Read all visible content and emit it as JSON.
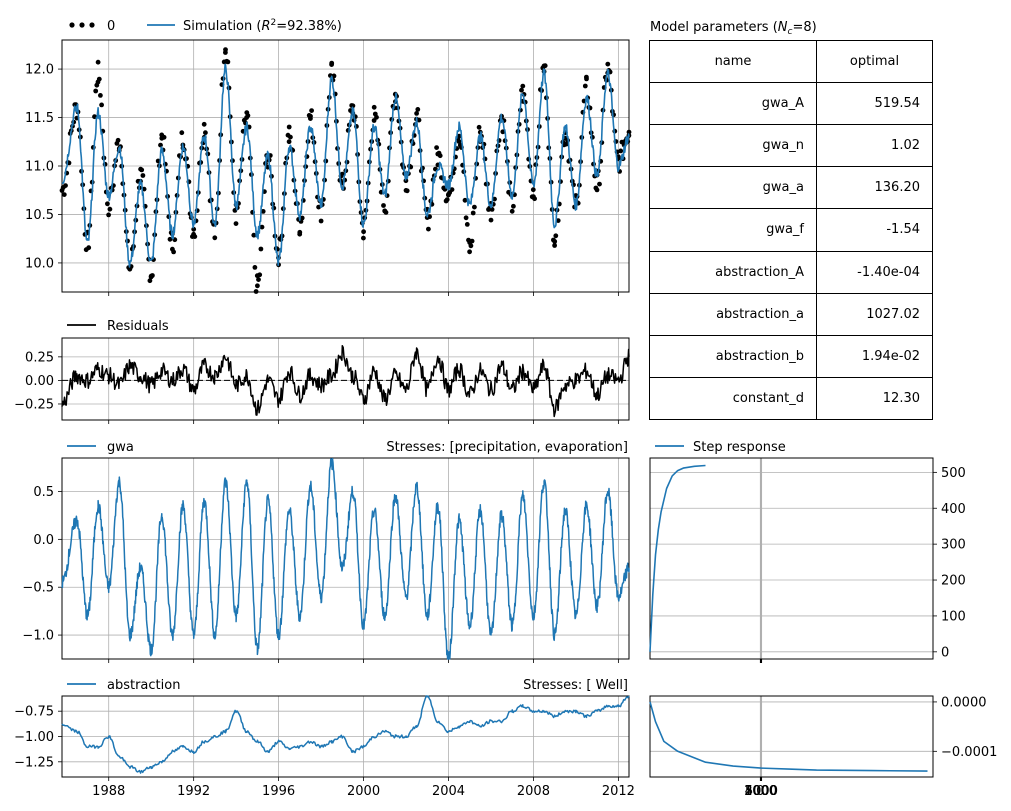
{
  "colors": {
    "simulation": "#1f77b4",
    "observations": "#000000",
    "residuals": "#000000",
    "contribution": "#1f77b4",
    "grid": "#b0b0b0"
  },
  "legend": {
    "observations": "0",
    "simulation_prefix": "Simulation (",
    "simulation_r2_sym": "R",
    "simulation_r2_sup": "2",
    "simulation_r2_val": "=92.38%)",
    "residuals": "Residuals",
    "gwa": "gwa",
    "abstraction": "abstraction",
    "step_response": "Step response"
  },
  "titles": {
    "gwa_stresses": "Stresses: [precipitation, evaporation]",
    "abstraction_stresses": "Stresses: [ Well]"
  },
  "parameters": {
    "title_prefix": "Model parameters (",
    "title_sym": "N",
    "title_sub": "c",
    "title_suffix": "=8)",
    "header": [
      "name",
      "optimal"
    ],
    "rows": [
      [
        "gwa_A",
        "519.54"
      ],
      [
        "gwa_n",
        "1.02"
      ],
      [
        "gwa_a",
        "136.20"
      ],
      [
        "gwa_f",
        "-1.54"
      ],
      [
        "abstraction_A",
        "-1.40e-04"
      ],
      [
        "abstraction_a",
        "1027.02"
      ],
      [
        "abstraction_b",
        "1.94e-02"
      ],
      [
        "constant_d",
        "12.30"
      ]
    ]
  },
  "chart_data": [
    {
      "name": "head",
      "type": "line",
      "x": [
        1985.8,
        1986.5,
        1987.0,
        1987.5,
        1988.0,
        1988.5,
        1989.0,
        1989.5,
        1990.0,
        1990.5,
        1991.0,
        1991.5,
        1992.0,
        1992.5,
        1993.0,
        1993.5,
        1994.0,
        1994.5,
        1995.0,
        1995.5,
        1996.0,
        1996.5,
        1997.0,
        1997.5,
        1998.0,
        1998.5,
        1999.0,
        1999.5,
        2000.0,
        2000.5,
        2001.0,
        2001.5,
        2002.0,
        2002.5,
        2003.0,
        2003.5,
        2004.0,
        2004.5,
        2005.0,
        2005.5,
        2006.0,
        2006.5,
        2007.0,
        2007.5,
        2008.0,
        2008.5,
        2009.0,
        2009.5,
        2010.0,
        2010.5,
        2011.0,
        2011.5,
        2012.0,
        2012.5
      ],
      "series": [
        {
          "name": "Simulation",
          "values": [
            10.85,
            11.6,
            10.2,
            11.55,
            10.7,
            11.2,
            10.0,
            10.8,
            10.0,
            11.15,
            10.3,
            11.2,
            10.4,
            11.3,
            10.4,
            12.0,
            10.6,
            11.4,
            10.3,
            11.1,
            10.0,
            11.2,
            10.5,
            11.4,
            10.6,
            11.9,
            10.8,
            11.55,
            10.4,
            11.4,
            10.7,
            11.7,
            10.9,
            11.45,
            10.5,
            11.0,
            10.8,
            11.4,
            10.6,
            11.3,
            10.6,
            11.5,
            10.7,
            11.75,
            10.8,
            11.95,
            10.4,
            11.4,
            10.6,
            11.7,
            10.9,
            11.95,
            11.0,
            11.3
          ]
        },
        {
          "name": "0",
          "values": [
            10.75,
            11.6,
            10.2,
            11.95,
            10.6,
            11.25,
            9.95,
            10.9,
            9.9,
            11.3,
            10.2,
            11.3,
            10.35,
            11.4,
            10.3,
            12.25,
            10.5,
            11.5,
            9.75,
            11.1,
            10.1,
            11.3,
            10.4,
            11.5,
            10.55,
            11.95,
            10.8,
            11.6,
            10.35,
            11.5,
            10.6,
            11.75,
            10.85,
            11.5,
            10.45,
            11.1,
            10.7,
            11.35,
            10.15,
            11.35,
            10.55,
            11.5,
            10.6,
            11.75,
            10.75,
            12.0,
            10.3,
            11.35,
            10.6,
            11.8,
            10.8,
            12.0,
            11.05,
            11.35
          ]
        }
      ],
      "xlim": [
        1985.8,
        2012.5
      ],
      "ylim": [
        9.7,
        12.3
      ],
      "yticks": [
        "10.0",
        "10.5",
        "11.0",
        "11.5",
        "12.0"
      ],
      "grid": true,
      "legend": "top-left"
    },
    {
      "name": "residuals",
      "type": "line",
      "x": [
        1985.8,
        1986.5,
        1987.0,
        1987.5,
        1988.0,
        1988.5,
        1989.0,
        1989.5,
        1990.0,
        1990.5,
        1991.0,
        1991.5,
        1992.0,
        1992.5,
        1993.0,
        1993.5,
        1994.0,
        1994.5,
        1995.0,
        1995.5,
        1996.0,
        1996.5,
        1997.0,
        1997.5,
        1998.0,
        1998.5,
        1999.0,
        1999.5,
        2000.0,
        2000.5,
        2001.0,
        2001.5,
        2002.0,
        2002.5,
        2003.0,
        2003.5,
        2004.0,
        2004.5,
        2005.0,
        2005.5,
        2006.0,
        2006.5,
        2007.0,
        2007.5,
        2008.0,
        2008.5,
        2009.0,
        2009.5,
        2010.0,
        2010.5,
        2011.0,
        2011.5,
        2012.0,
        2012.5
      ],
      "series": [
        {
          "name": "Residuals",
          "values": [
            -0.25,
            0.05,
            0.0,
            0.12,
            0.05,
            -0.05,
            0.15,
            0.05,
            -0.05,
            0.1,
            0.0,
            0.12,
            -0.1,
            0.15,
            0.05,
            0.25,
            -0.05,
            0.05,
            -0.3,
            0.0,
            -0.2,
            0.1,
            -0.15,
            0.05,
            -0.05,
            0.05,
            0.3,
            0.05,
            -0.2,
            0.1,
            -0.2,
            0.05,
            -0.1,
            0.3,
            -0.1,
            0.25,
            -0.1,
            0.12,
            -0.15,
            0.1,
            -0.1,
            0.15,
            -0.1,
            0.1,
            -0.1,
            0.15,
            -0.3,
            -0.05,
            0.0,
            0.1,
            -0.15,
            0.05,
            0.0,
            0.25
          ]
        }
      ],
      "xlim": [
        1985.8,
        2012.5
      ],
      "ylim": [
        -0.42,
        0.45
      ],
      "yticks": [
        "−0.25",
        "0.00",
        "0.25"
      ],
      "zero_line": true,
      "grid": true,
      "legend": "top-left"
    },
    {
      "name": "gwa",
      "type": "line",
      "x": [
        1985.8,
        1986.5,
        1987.0,
        1987.5,
        1988.0,
        1988.5,
        1989.0,
        1989.5,
        1990.0,
        1990.5,
        1991.0,
        1991.5,
        1992.0,
        1992.5,
        1993.0,
        1993.5,
        1994.0,
        1994.5,
        1995.0,
        1995.5,
        1996.0,
        1996.5,
        1997.0,
        1997.5,
        1998.0,
        1998.5,
        1999.0,
        1999.5,
        2000.0,
        2000.5,
        2001.0,
        2001.5,
        2002.0,
        2002.5,
        2003.0,
        2003.5,
        2004.0,
        2004.5,
        2005.0,
        2005.5,
        2006.0,
        2006.5,
        2007.0,
        2007.5,
        2008.0,
        2008.5,
        2009.0,
        2009.5,
        2010.0,
        2010.5,
        2011.0,
        2011.5,
        2012.0,
        2012.5
      ],
      "series": [
        {
          "name": "gwa",
          "values": [
            -0.45,
            0.2,
            -0.8,
            0.35,
            -0.5,
            0.6,
            -1.0,
            -0.3,
            -1.15,
            0.25,
            -1.0,
            0.35,
            -1.0,
            0.4,
            -1.0,
            0.6,
            -0.8,
            0.6,
            -1.15,
            0.4,
            -1.0,
            0.3,
            -0.8,
            0.55,
            -0.6,
            0.8,
            -0.3,
            0.5,
            -0.9,
            0.3,
            -0.8,
            0.45,
            -0.6,
            0.55,
            -0.8,
            0.35,
            -1.25,
            0.2,
            -0.9,
            0.3,
            -1.0,
            0.25,
            -0.9,
            0.45,
            -0.8,
            0.6,
            -1.0,
            0.3,
            -0.8,
            0.35,
            -0.7,
            0.5,
            -0.6,
            -0.3
          ]
        }
      ],
      "xlim": [
        1985.8,
        2012.5
      ],
      "ylim": [
        -1.25,
        0.85
      ],
      "yticks": [
        "−1.0",
        "−0.5",
        "0.0",
        "0.5"
      ],
      "grid": true,
      "legend": "top-left"
    },
    {
      "name": "abstraction",
      "type": "line",
      "x": [
        1985.8,
        1986.5,
        1987.0,
        1987.5,
        1988.0,
        1988.5,
        1989.0,
        1989.5,
        1990.0,
        1990.5,
        1991.0,
        1991.5,
        1992.0,
        1992.5,
        1993.0,
        1993.5,
        1994.0,
        1994.5,
        1995.0,
        1995.5,
        1996.0,
        1996.5,
        1997.0,
        1997.5,
        1998.0,
        1998.5,
        1999.0,
        1999.5,
        2000.0,
        2000.5,
        2001.0,
        2001.5,
        2002.0,
        2002.5,
        2003.0,
        2003.5,
        2004.0,
        2004.5,
        2005.0,
        2005.5,
        2006.0,
        2006.5,
        2007.0,
        2007.5,
        2008.0,
        2008.5,
        2009.0,
        2009.5,
        2010.0,
        2010.5,
        2011.0,
        2011.5,
        2012.0,
        2012.5
      ],
      "series": [
        {
          "name": "abstraction",
          "values": [
            -0.88,
            -0.95,
            -1.1,
            -1.1,
            -1.0,
            -1.2,
            -1.3,
            -1.35,
            -1.3,
            -1.25,
            -1.15,
            -1.1,
            -1.15,
            -1.05,
            -1.0,
            -0.95,
            -0.75,
            -0.95,
            -1.05,
            -1.15,
            -1.05,
            -1.12,
            -1.1,
            -1.05,
            -1.1,
            -1.05,
            -1.0,
            -1.15,
            -1.1,
            -1.0,
            -0.95,
            -1.0,
            -1.0,
            -0.9,
            -0.6,
            -0.85,
            -0.95,
            -0.9,
            -0.85,
            -0.9,
            -0.85,
            -0.85,
            -0.75,
            -0.7,
            -0.75,
            -0.75,
            -0.8,
            -0.75,
            -0.75,
            -0.8,
            -0.75,
            -0.7,
            -0.7,
            -0.6
          ]
        }
      ],
      "xlim": [
        1985.8,
        2012.5
      ],
      "ylim": [
        -1.4,
        -0.6
      ],
      "yticks": [
        "−1.25",
        "−1.00",
        "−0.75"
      ],
      "xticks": [
        "1988",
        "1992",
        "1996",
        "2000",
        "2004",
        "2008",
        "2012"
      ],
      "grid": true,
      "legend": "top-left"
    },
    {
      "name": "gwa_step",
      "type": "line",
      "x": [
        0,
        50,
        100,
        150,
        200,
        300,
        400,
        500,
        600,
        800,
        1000
      ],
      "series": [
        {
          "name": "Step response",
          "values": [
            0,
            160,
            270,
            340,
            390,
            455,
            490,
            505,
            512,
            517,
            519
          ]
        }
      ],
      "xlim": [
        0,
        5100
      ],
      "ylim": [
        -20,
        540
      ],
      "yticks": [
        "0",
        "100",
        "200",
        "300",
        "400",
        "500"
      ],
      "grid": true,
      "legend": "top-left"
    },
    {
      "name": "abstraction_step",
      "type": "line",
      "x": [
        0,
        100,
        250,
        500,
        1000,
        1500,
        2000,
        2500,
        3000,
        4000,
        5000
      ],
      "series": [
        {
          "name": "abstraction_step",
          "values": [
            0,
            -4e-05,
            -8e-05,
            -0.0001,
            -0.000122,
            -0.00013,
            -0.000134,
            -0.000136,
            -0.000138,
            -0.000139,
            -0.00014
          ]
        }
      ],
      "xlim": [
        0,
        5100
      ],
      "ylim": [
        -0.000152,
        1.2e-05
      ],
      "yticks": [
        "−0.0001",
        "0.0000"
      ],
      "xticks": [
        "0",
        "1000",
        "2000",
        "3000",
        "4000",
        "5000"
      ],
      "grid": true
    }
  ]
}
